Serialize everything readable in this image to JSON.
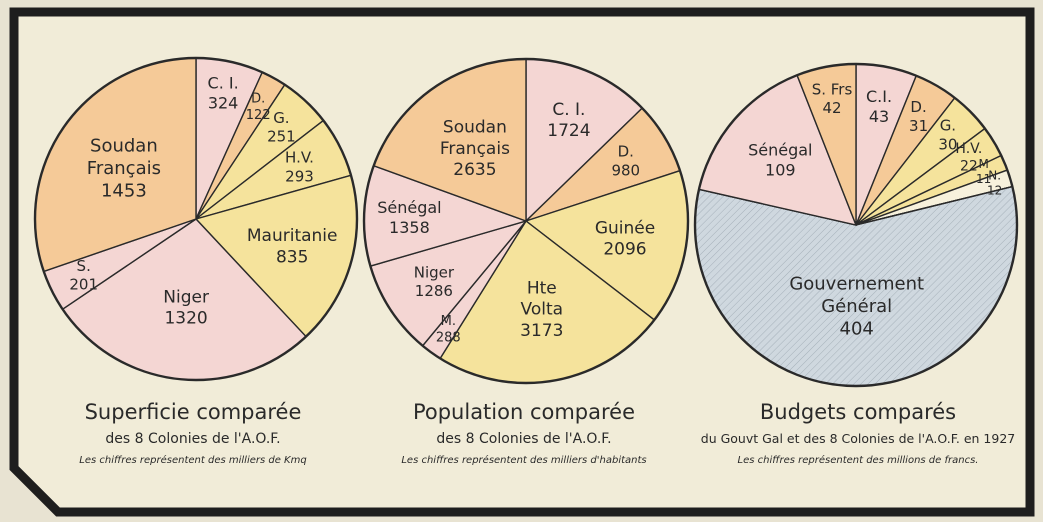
{
  "colors": {
    "frame": "#1e1e1e",
    "paper": "#f1ecd8",
    "outside": "#e8e3d2",
    "orange": "#f5ca98",
    "pink": "#f4d6d3",
    "yellow": "#f5e39c",
    "blue": "#cfd8df",
    "cream": "#f7f1dc",
    "ink": "#2a2a2a"
  },
  "chart_data": [
    {
      "type": "pie",
      "title": "Superficie comparée",
      "subtitle": "des 8 Colonies de l'A.O.F.",
      "note": "Les chiffres représentent des milliers de Kmq",
      "slices": [
        {
          "label": "C. I.",
          "value": 324,
          "color": "pink"
        },
        {
          "label": "D.",
          "value": 122,
          "color": "orange"
        },
        {
          "label": "G.",
          "value": 251,
          "color": "yellow"
        },
        {
          "label": "H.V.",
          "value": 293,
          "color": "yellow"
        },
        {
          "label": "Mauritanie",
          "value": 835,
          "color": "yellow"
        },
        {
          "label": "Niger",
          "value": 1320,
          "color": "pink"
        },
        {
          "label": "S.",
          "value": 201,
          "color": "pink"
        },
        {
          "label": "Soudan Français",
          "value": 1453,
          "color": "orange"
        }
      ]
    },
    {
      "type": "pie",
      "title": "Population comparée",
      "subtitle": "des 8 Colonies de l'A.O.F.",
      "note": "Les chiffres représentent des milliers d'habitants",
      "slices": [
        {
          "label": "C. I.",
          "value": 1724,
          "color": "pink"
        },
        {
          "label": "D.",
          "value": 980,
          "color": "orange"
        },
        {
          "label": "Guinée",
          "value": 2096,
          "color": "yellow"
        },
        {
          "label": "Hte Volta",
          "value": 3173,
          "color": "yellow"
        },
        {
          "label": "M.",
          "value": 288,
          "color": "pink"
        },
        {
          "label": "Niger",
          "value": 1286,
          "color": "pink"
        },
        {
          "label": "Sénégal",
          "value": 1358,
          "color": "pink"
        },
        {
          "label": "Soudan Français",
          "value": 2635,
          "color": "orange"
        }
      ]
    },
    {
      "type": "pie",
      "title": "Budgets comparés",
      "subtitle": "du Gouvt Gal et des 8 Colonies de l'A.O.F. en 1927",
      "note": "Les chiffres représentent des millions de francs.",
      "slices": [
        {
          "label": "C.I.",
          "value": 43,
          "color": "pink"
        },
        {
          "label": "D.",
          "value": 31,
          "color": "orange"
        },
        {
          "label": "G.",
          "value": 30,
          "color": "yellow"
        },
        {
          "label": "H.V.",
          "value": 22,
          "color": "yellow"
        },
        {
          "label": "M",
          "value": 11,
          "color": "yellow"
        },
        {
          "label": "N.",
          "value": 12,
          "color": "cream"
        },
        {
          "label": "Gouvernement Général",
          "value": 404,
          "color": "blue"
        },
        {
          "label": "Sénégal",
          "value": 109,
          "color": "pink"
        },
        {
          "label": "S. Frs",
          "value": 42,
          "color": "orange"
        }
      ]
    }
  ]
}
